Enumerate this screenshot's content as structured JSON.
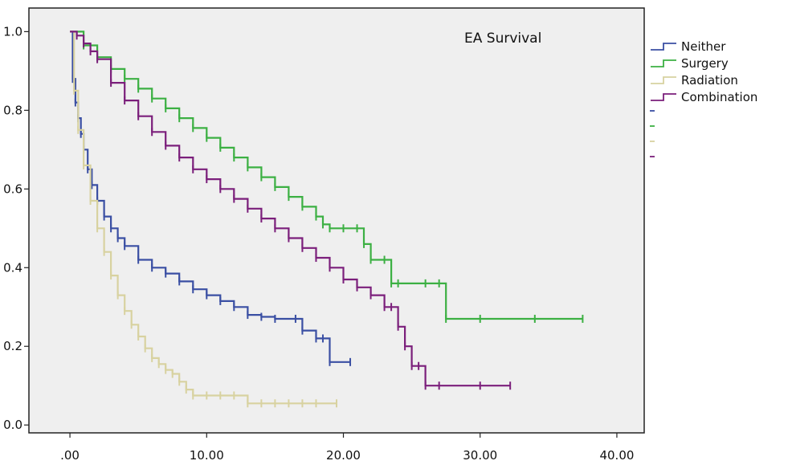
{
  "chart_data": {
    "type": "line",
    "title": "EA Survival",
    "xlabel": "",
    "ylabel": "",
    "xlim": [
      -3,
      42
    ],
    "ylim": [
      -0.02,
      1.06
    ],
    "x_ticks": [
      0,
      10,
      20,
      30,
      40
    ],
    "x_tick_labels": [
      ".00",
      "10.00",
      "20.00",
      "30.00",
      "40.00"
    ],
    "y_ticks": [
      0,
      0.2,
      0.4,
      0.6,
      0.8,
      1.0
    ],
    "y_tick_labels": [
      "0.0",
      "0.2",
      "0.4",
      "0.6",
      "0.8",
      "1.0"
    ],
    "grid": false,
    "legend_position": "right",
    "background": "#efefef",
    "series": [
      {
        "name": "Neither",
        "color": "#3a4fa3",
        "x": [
          0,
          0.2,
          0.4,
          0.6,
          0.8,
          1,
          1.3,
          1.6,
          2,
          2.5,
          3,
          3.5,
          4,
          5,
          6,
          7,
          8,
          9,
          10,
          11,
          12,
          13,
          14,
          15,
          16.5,
          17,
          18,
          18.5,
          19,
          20.5
        ],
        "y": [
          1.0,
          0.88,
          0.82,
          0.78,
          0.74,
          0.7,
          0.65,
          0.61,
          0.57,
          0.53,
          0.5,
          0.475,
          0.455,
          0.42,
          0.4,
          0.385,
          0.365,
          0.345,
          0.33,
          0.315,
          0.3,
          0.28,
          0.275,
          0.27,
          0.27,
          0.24,
          0.22,
          0.22,
          0.16,
          0.16
        ]
      },
      {
        "name": "Surgery",
        "color": "#3cb043",
        "x": [
          0,
          1,
          2,
          3,
          4,
          5,
          6,
          7,
          8,
          9,
          10,
          11,
          12,
          13,
          14,
          15,
          16,
          17,
          18,
          18.5,
          19,
          20,
          21,
          21.5,
          22,
          23,
          23.5,
          24,
          26,
          27,
          27.5,
          30,
          34,
          37.5
        ],
        "y": [
          1.0,
          0.965,
          0.935,
          0.905,
          0.88,
          0.855,
          0.83,
          0.805,
          0.78,
          0.755,
          0.73,
          0.705,
          0.68,
          0.655,
          0.63,
          0.605,
          0.58,
          0.555,
          0.53,
          0.51,
          0.5,
          0.5,
          0.5,
          0.46,
          0.42,
          0.42,
          0.36,
          0.36,
          0.36,
          0.36,
          0.27,
          0.27,
          0.27,
          0.27
        ]
      },
      {
        "name": "Radiation",
        "color": "#d8d2a0",
        "x": [
          0,
          0.3,
          0.6,
          1,
          1.5,
          2,
          2.5,
          3,
          3.5,
          4,
          4.5,
          5,
          5.5,
          6,
          6.5,
          7,
          7.5,
          8,
          8.5,
          9,
          10,
          11,
          12,
          13,
          14,
          15,
          16,
          17,
          18,
          19.5
        ],
        "y": [
          1.0,
          0.85,
          0.75,
          0.66,
          0.57,
          0.5,
          0.44,
          0.38,
          0.33,
          0.29,
          0.255,
          0.225,
          0.195,
          0.17,
          0.155,
          0.14,
          0.13,
          0.11,
          0.09,
          0.075,
          0.075,
          0.075,
          0.075,
          0.055,
          0.055,
          0.055,
          0.055,
          0.055,
          0.055,
          0.055
        ]
      },
      {
        "name": "Combination",
        "color": "#7b1f7b",
        "x": [
          0,
          0.5,
          1,
          1.5,
          2,
          3,
          4,
          5,
          6,
          7,
          8,
          9,
          10,
          11,
          12,
          13,
          14,
          15,
          16,
          17,
          18,
          19,
          20,
          21,
          22,
          23,
          23.5,
          24,
          24.5,
          25,
          25.5,
          26,
          27,
          30,
          32.2
        ],
        "y": [
          1.0,
          0.99,
          0.97,
          0.95,
          0.93,
          0.87,
          0.825,
          0.785,
          0.745,
          0.71,
          0.68,
          0.65,
          0.625,
          0.6,
          0.575,
          0.55,
          0.525,
          0.5,
          0.475,
          0.45,
          0.425,
          0.4,
          0.37,
          0.35,
          0.33,
          0.3,
          0.3,
          0.25,
          0.2,
          0.15,
          0.15,
          0.1,
          0.1,
          0.1,
          0.1
        ]
      }
    ]
  }
}
